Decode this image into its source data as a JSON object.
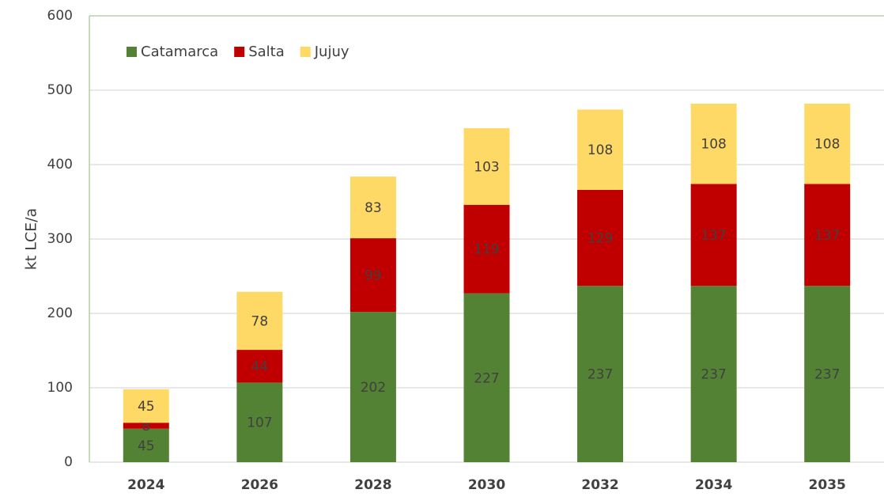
{
  "chart_data": {
    "type": "stacked_bar",
    "ylabel": "kt LCE/a",
    "categories": [
      "2024",
      "2026",
      "2028",
      "2030",
      "2032",
      "2034",
      "2035"
    ],
    "series": [
      {
        "name": "Catamarca",
        "color": "#548235",
        "values": [
          45,
          107,
          202,
          227,
          237,
          237,
          237
        ]
      },
      {
        "name": "Salta",
        "color": "#c00000",
        "values": [
          8,
          44,
          99,
          119,
          129,
          137,
          137
        ]
      },
      {
        "name": "Jujuy",
        "color": "#ffd966",
        "values": [
          45,
          78,
          83,
          103,
          108,
          108,
          108
        ]
      }
    ],
    "ylim": [
      0,
      600
    ],
    "yticks": [
      0,
      100,
      200,
      300,
      400,
      500,
      600
    ],
    "grid": true,
    "legend": "upper left"
  }
}
